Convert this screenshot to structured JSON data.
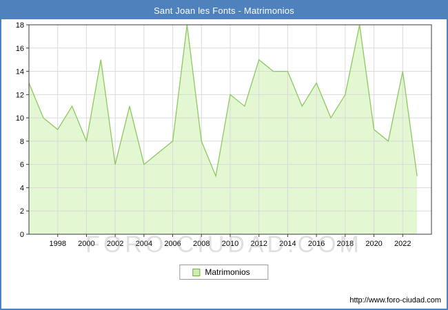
{
  "title": "Sant Joan les Fonts - Matrimonios",
  "watermark": "FORO CIUDAD.COM",
  "footer_url": "http://www.foro-ciudad.com",
  "legend": {
    "label": "Matrimonios"
  },
  "colors": {
    "frame_blue": "#4f81bd",
    "area_fill": "#e3f7d2",
    "line_green": "#8cc85e",
    "grid": "#d9d9d9",
    "plot_border": "#3a3a3a"
  },
  "chart_data": {
    "type": "area",
    "title": "Sant Joan les Fonts - Matrimonios",
    "series_name": "Matrimonios",
    "x": [
      1996,
      1997,
      1998,
      1999,
      2000,
      2001,
      2002,
      2003,
      2004,
      2005,
      2006,
      2007,
      2008,
      2009,
      2010,
      2011,
      2012,
      2013,
      2014,
      2015,
      2016,
      2017,
      2018,
      2019,
      2020,
      2021,
      2022,
      2023
    ],
    "values": [
      13,
      10,
      9,
      11,
      8,
      15,
      6,
      11,
      6,
      7,
      8,
      18,
      8,
      5,
      12,
      11,
      15,
      14,
      14,
      11,
      13,
      10,
      12,
      18,
      9,
      8,
      14,
      5
    ],
    "ylim": [
      0,
      18
    ],
    "ytick_step": 2,
    "x_axis_range": [
      1996,
      2024
    ],
    "x_tick_labels": [
      1998,
      2000,
      2002,
      2004,
      2006,
      2008,
      2010,
      2012,
      2014,
      2016,
      2018,
      2020,
      2022
    ],
    "xlabel": "",
    "ylabel": "",
    "grid": true,
    "legend_position": "bottom"
  }
}
